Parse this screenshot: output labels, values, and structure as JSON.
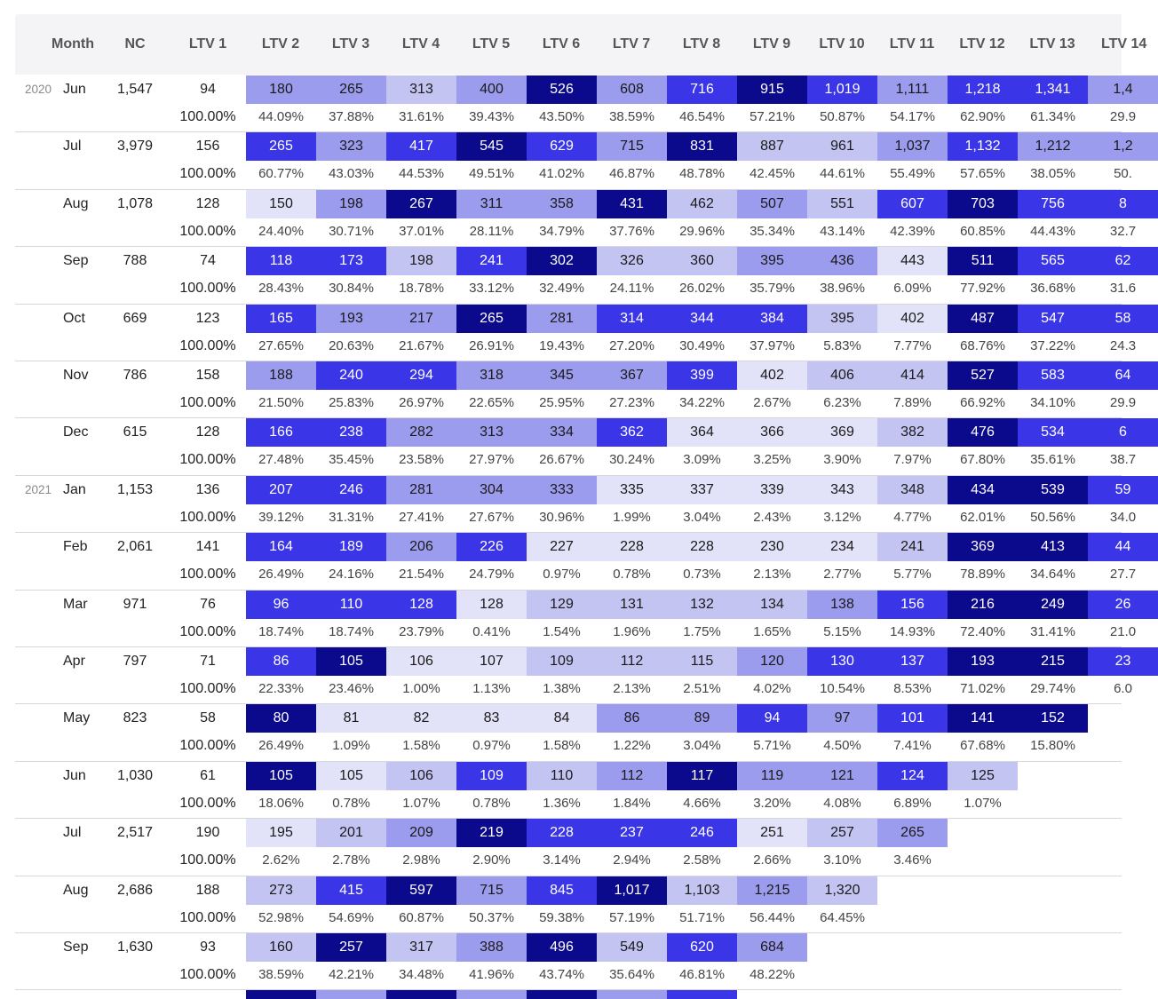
{
  "table": {
    "headers": [
      "Month",
      "NC",
      "LTV 1",
      "LTV 2",
      "LTV 3",
      "LTV 4",
      "LTV 5",
      "LTV 6",
      "LTV 7",
      "LTV 8",
      "LTV 9",
      "LTV 10",
      "LTV 11",
      "LTV 12",
      "LTV 13",
      "LTV 14"
    ],
    "rows": [
      {
        "year": "2020",
        "month": "Jun",
        "nc": "1,547",
        "ltv1": "94",
        "ltv1_pct": "100.00%",
        "values": [
          "180",
          "265",
          "313",
          "400",
          "526",
          "608",
          "716",
          "915",
          "1,019",
          "1,111",
          "1,218",
          "1,341",
          "1,4"
        ],
        "pcts": [
          "44.09%",
          "37.88%",
          "31.61%",
          "39.43%",
          "43.50%",
          "38.59%",
          "46.54%",
          "57.21%",
          "50.87%",
          "54.17%",
          "62.90%",
          "61.34%",
          "29.9"
        ],
        "shades": [
          3,
          3,
          2,
          3,
          5,
          3,
          4,
          5,
          4,
          3,
          4,
          4,
          3
        ]
      },
      {
        "year": "",
        "month": "Jul",
        "nc": "3,979",
        "ltv1": "156",
        "ltv1_pct": "100.00%",
        "values": [
          "265",
          "323",
          "417",
          "545",
          "629",
          "715",
          "831",
          "887",
          "961",
          "1,037",
          "1,132",
          "1,212",
          "1,2"
        ],
        "pcts": [
          "60.77%",
          "43.03%",
          "44.53%",
          "49.51%",
          "41.02%",
          "46.87%",
          "48.78%",
          "42.45%",
          "44.61%",
          "55.49%",
          "57.65%",
          "38.05%",
          "50."
        ],
        "shades": [
          4,
          3,
          4,
          5,
          4,
          3,
          5,
          2,
          2,
          3,
          4,
          3,
          3
        ]
      },
      {
        "year": "",
        "month": "Aug",
        "nc": "1,078",
        "ltv1": "128",
        "ltv1_pct": "100.00%",
        "values": [
          "150",
          "198",
          "267",
          "311",
          "358",
          "431",
          "462",
          "507",
          "551",
          "607",
          "703",
          "756",
          "8"
        ],
        "pcts": [
          "24.40%",
          "30.71%",
          "37.01%",
          "28.11%",
          "34.79%",
          "37.76%",
          "29.96%",
          "35.34%",
          "43.14%",
          "42.39%",
          "60.85%",
          "44.43%",
          "32.7"
        ],
        "shades": [
          1,
          3,
          5,
          3,
          3,
          5,
          2,
          3,
          2,
          4,
          5,
          4,
          4
        ]
      },
      {
        "year": "",
        "month": "Sep",
        "nc": "788",
        "ltv1": "74",
        "ltv1_pct": "100.00%",
        "values": [
          "118",
          "173",
          "198",
          "241",
          "302",
          "326",
          "360",
          "395",
          "436",
          "443",
          "511",
          "565",
          "62"
        ],
        "pcts": [
          "28.43%",
          "30.84%",
          "18.78%",
          "33.12%",
          "32.49%",
          "24.11%",
          "26.02%",
          "35.79%",
          "38.96%",
          "6.09%",
          "77.92%",
          "36.68%",
          "31.6"
        ],
        "shades": [
          4,
          4,
          2,
          4,
          5,
          2,
          2,
          3,
          3,
          1,
          5,
          4,
          4
        ]
      },
      {
        "year": "",
        "month": "Oct",
        "nc": "669",
        "ltv1": "123",
        "ltv1_pct": "100.00%",
        "values": [
          "165",
          "193",
          "217",
          "265",
          "281",
          "314",
          "344",
          "384",
          "395",
          "402",
          "487",
          "547",
          "58"
        ],
        "pcts": [
          "27.65%",
          "20.63%",
          "21.67%",
          "26.91%",
          "19.43%",
          "27.20%",
          "30.49%",
          "37.97%",
          "5.83%",
          "7.77%",
          "68.76%",
          "37.22%",
          "24.3"
        ],
        "shades": [
          4,
          3,
          3,
          5,
          3,
          4,
          4,
          4,
          2,
          1,
          5,
          4,
          4
        ]
      },
      {
        "year": "",
        "month": "Nov",
        "nc": "786",
        "ltv1": "158",
        "ltv1_pct": "100.00%",
        "values": [
          "188",
          "240",
          "294",
          "318",
          "345",
          "367",
          "399",
          "402",
          "406",
          "414",
          "527",
          "583",
          "64"
        ],
        "pcts": [
          "21.50%",
          "25.83%",
          "26.97%",
          "22.65%",
          "25.95%",
          "27.23%",
          "34.22%",
          "2.67%",
          "6.23%",
          "7.89%",
          "66.92%",
          "34.10%",
          "29.9"
        ],
        "shades": [
          3,
          4,
          4,
          3,
          3,
          3,
          4,
          1,
          2,
          2,
          5,
          4,
          4
        ]
      },
      {
        "year": "",
        "month": "Dec",
        "nc": "615",
        "ltv1": "128",
        "ltv1_pct": "100.00%",
        "values": [
          "166",
          "238",
          "282",
          "313",
          "334",
          "362",
          "364",
          "366",
          "369",
          "382",
          "476",
          "534",
          "6"
        ],
        "pcts": [
          "27.48%",
          "35.45%",
          "23.58%",
          "27.97%",
          "26.67%",
          "30.24%",
          "3.09%",
          "3.25%",
          "3.90%",
          "7.97%",
          "67.80%",
          "35.61%",
          "38.7"
        ],
        "shades": [
          4,
          4,
          3,
          3,
          3,
          4,
          1,
          1,
          1,
          2,
          5,
          4,
          4
        ]
      },
      {
        "year": "2021",
        "month": "Jan",
        "nc": "1,153",
        "ltv1": "136",
        "ltv1_pct": "100.00%",
        "values": [
          "207",
          "246",
          "281",
          "304",
          "333",
          "335",
          "337",
          "339",
          "343",
          "348",
          "434",
          "539",
          "59"
        ],
        "pcts": [
          "39.12%",
          "31.31%",
          "27.41%",
          "27.67%",
          "30.96%",
          "1.99%",
          "3.04%",
          "2.43%",
          "3.12%",
          "4.77%",
          "62.01%",
          "50.56%",
          "34.0"
        ],
        "shades": [
          4,
          4,
          3,
          3,
          3,
          1,
          1,
          1,
          1,
          2,
          5,
          5,
          4
        ]
      },
      {
        "year": "",
        "month": "Feb",
        "nc": "2,061",
        "ltv1": "141",
        "ltv1_pct": "100.00%",
        "values": [
          "164",
          "189",
          "206",
          "226",
          "227",
          "228",
          "228",
          "230",
          "234",
          "241",
          "369",
          "413",
          "44"
        ],
        "pcts": [
          "26.49%",
          "24.16%",
          "21.54%",
          "24.79%",
          "0.97%",
          "0.78%",
          "0.73%",
          "2.13%",
          "2.77%",
          "5.77%",
          "78.89%",
          "34.64%",
          "27.7"
        ],
        "shades": [
          4,
          4,
          3,
          4,
          1,
          1,
          1,
          1,
          1,
          2,
          5,
          5,
          4
        ]
      },
      {
        "year": "",
        "month": "Mar",
        "nc": "971",
        "ltv1": "76",
        "ltv1_pct": "100.00%",
        "values": [
          "96",
          "110",
          "128",
          "128",
          "129",
          "131",
          "132",
          "134",
          "138",
          "156",
          "216",
          "249",
          "26"
        ],
        "pcts": [
          "18.74%",
          "18.74%",
          "23.79%",
          "0.41%",
          "1.54%",
          "1.96%",
          "1.75%",
          "1.65%",
          "5.15%",
          "14.93%",
          "72.40%",
          "31.41%",
          "21.0"
        ],
        "shades": [
          4,
          4,
          4,
          1,
          2,
          2,
          2,
          2,
          3,
          4,
          5,
          5,
          4
        ]
      },
      {
        "year": "",
        "month": "Apr",
        "nc": "797",
        "ltv1": "71",
        "ltv1_pct": "100.00%",
        "values": [
          "86",
          "105",
          "106",
          "107",
          "109",
          "112",
          "115",
          "120",
          "130",
          "137",
          "193",
          "215",
          "23"
        ],
        "pcts": [
          "22.33%",
          "23.46%",
          "1.00%",
          "1.13%",
          "1.38%",
          "2.13%",
          "2.51%",
          "4.02%",
          "10.54%",
          "8.53%",
          "71.02%",
          "29.74%",
          "6.0"
        ],
        "shades": [
          4,
          5,
          1,
          1,
          2,
          2,
          2,
          3,
          4,
          4,
          5,
          5,
          4
        ]
      },
      {
        "year": "",
        "month": "May",
        "nc": "823",
        "ltv1": "58",
        "ltv1_pct": "100.00%",
        "values": [
          "80",
          "81",
          "82",
          "83",
          "84",
          "86",
          "89",
          "94",
          "97",
          "101",
          "141",
          "152"
        ],
        "pcts": [
          "26.49%",
          "1.09%",
          "1.58%",
          "0.97%",
          "1.58%",
          "1.22%",
          "3.04%",
          "5.71%",
          "4.50%",
          "7.41%",
          "67.68%",
          "15.80%"
        ],
        "shades": [
          5,
          1,
          1,
          1,
          1,
          3,
          3,
          4,
          3,
          4,
          5,
          5
        ]
      },
      {
        "year": "",
        "month": "Jun",
        "nc": "1,030",
        "ltv1": "61",
        "ltv1_pct": "100.00%",
        "values": [
          "105",
          "105",
          "106",
          "109",
          "110",
          "112",
          "117",
          "119",
          "121",
          "124",
          "125"
        ],
        "pcts": [
          "18.06%",
          "0.78%",
          "1.07%",
          "0.78%",
          "1.36%",
          "1.84%",
          "4.66%",
          "3.20%",
          "4.08%",
          "6.89%",
          "1.07%"
        ],
        "shades": [
          5,
          1,
          2,
          4,
          2,
          3,
          5,
          3,
          3,
          4,
          2
        ]
      },
      {
        "year": "",
        "month": "Jul",
        "nc": "2,517",
        "ltv1": "190",
        "ltv1_pct": "100.00%",
        "values": [
          "195",
          "201",
          "209",
          "219",
          "228",
          "237",
          "246",
          "251",
          "257",
          "265"
        ],
        "pcts": [
          "2.62%",
          "2.78%",
          "2.98%",
          "2.90%",
          "3.14%",
          "2.94%",
          "2.58%",
          "2.66%",
          "3.10%",
          "3.46%"
        ],
        "shades": [
          1,
          2,
          3,
          5,
          4,
          4,
          4,
          1,
          2,
          3
        ]
      },
      {
        "year": "",
        "month": "Aug",
        "nc": "2,686",
        "ltv1": "188",
        "ltv1_pct": "100.00%",
        "values": [
          "273",
          "415",
          "597",
          "715",
          "845",
          "1,017",
          "1,103",
          "1,215",
          "1,320"
        ],
        "pcts": [
          "52.98%",
          "54.69%",
          "60.87%",
          "50.37%",
          "59.38%",
          "57.19%",
          "51.71%",
          "56.44%",
          "64.45%"
        ],
        "shades": [
          2,
          4,
          5,
          3,
          4,
          5,
          2,
          3,
          2
        ]
      },
      {
        "year": "",
        "month": "Sep",
        "nc": "1,630",
        "ltv1": "93",
        "ltv1_pct": "100.00%",
        "values": [
          "160",
          "257",
          "317",
          "388",
          "496",
          "549",
          "620",
          "684"
        ],
        "pcts": [
          "38.59%",
          "42.21%",
          "34.48%",
          "41.96%",
          "43.74%",
          "35.64%",
          "46.81%",
          "48.22%"
        ],
        "shades": [
          2,
          5,
          2,
          3,
          5,
          2,
          4,
          3
        ]
      }
    ],
    "partial_row_shades": [
      5,
      3,
      5,
      3,
      5,
      3,
      4
    ]
  },
  "palette": {
    "shade_1": "#e2e2f8",
    "shade_2": "#c4c4f2",
    "shade_3": "#9c9cee",
    "shade_4": "#3a35e6",
    "shade_5": "#0c0a8c",
    "header_bg": "#f4f4f6",
    "row_line": "#d6d6dc"
  }
}
